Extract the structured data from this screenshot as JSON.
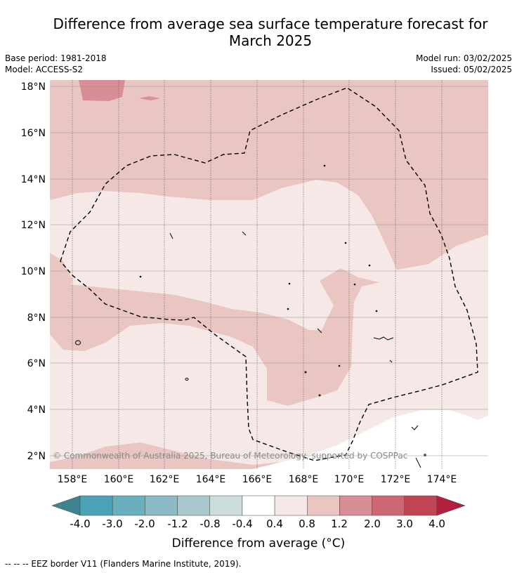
{
  "title_line1": "Difference from average sea surface temperature forecast for",
  "title_line2": "March 2025",
  "meta": {
    "base_period": "Base period: 1981-2018",
    "model": "Model: ACCESS-S2",
    "model_run": "Model run: 03/02/2025",
    "issued": "Issued: 05/02/2025"
  },
  "lat_labels": [
    "18°N",
    "16°N",
    "14°N",
    "12°N",
    "10°N",
    "8°N",
    "6°N",
    "4°N",
    "2°N"
  ],
  "lon_labels": [
    "158°E",
    "160°E",
    "162°E",
    "164°E",
    "166°E",
    "168°E",
    "170°E",
    "172°E",
    "174°E"
  ],
  "copyright": "© Commonwealth of Australia 2025, Bureau of Meteorology, supported by COSPPac",
  "colorbar": {
    "title": "Difference from average (°C)",
    "tick_labels": [
      "-4.0",
      "-3.0",
      "-2.0",
      "-1.2",
      "-0.8",
      "-0.4",
      "0.4",
      "0.8",
      "1.2",
      "2.0",
      "3.0",
      "4.0"
    ],
    "colors": [
      "#4ba3b5",
      "#6aafbe",
      "#8cbbc6",
      "#a8c7cc",
      "#ccdbdc",
      "#ffffff",
      "#f5e8e6",
      "#e9c6c2",
      "#d88e96",
      "#cc6672",
      "#c04454"
    ],
    "low_color": "#3f848f",
    "high_color": "#b2203e"
  },
  "footnote": "-- -- -- EEZ border V11 (Flanders Marine Institute, 2019)."
}
